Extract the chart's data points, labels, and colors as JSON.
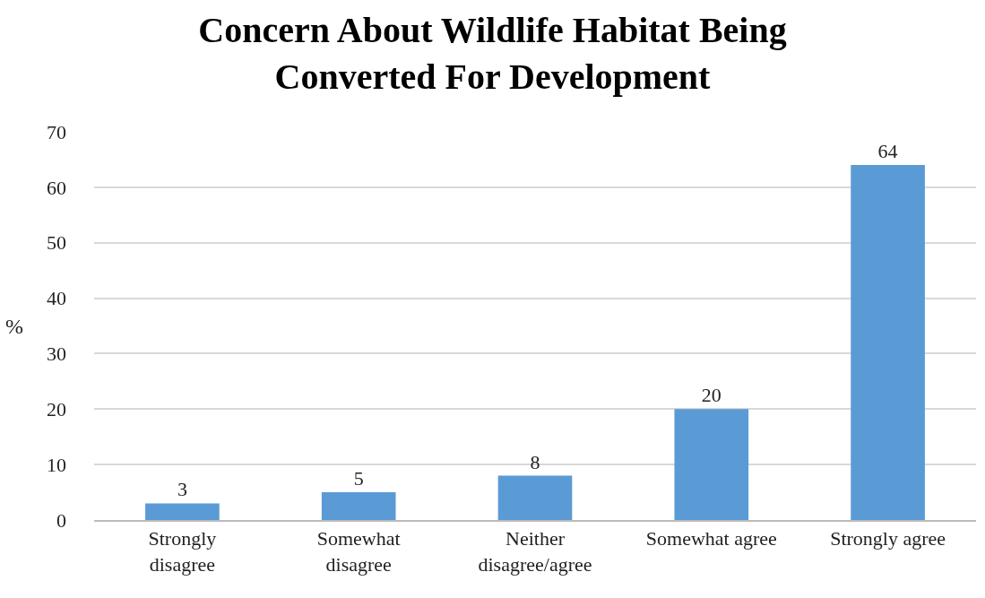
{
  "chart_data": {
    "type": "bar",
    "title": "Concern About Wildlife Habitat Being Converted For Development",
    "ylabel": "%",
    "categories": [
      "Strongly disagree",
      "Somewhat disagree",
      "Neither disagree/agree",
      "Somewhat agree",
      "Strongly agree"
    ],
    "values": [
      3,
      5,
      8,
      20,
      64
    ],
    "color": "#5b9bd5",
    "data_labels": true,
    "ylim": [
      0,
      70
    ],
    "yticks": [
      0,
      10,
      20,
      30,
      40,
      50,
      60,
      70
    ],
    "grid": "y"
  }
}
